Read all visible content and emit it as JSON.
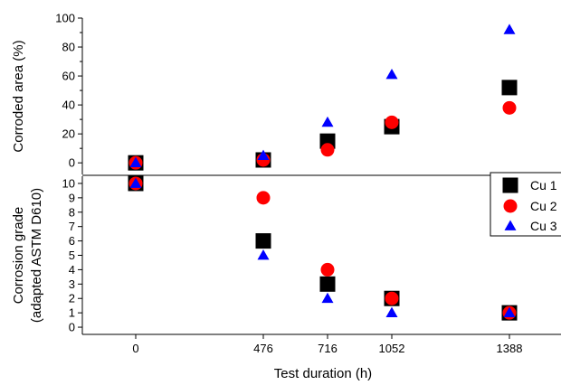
{
  "chart_data": [
    {
      "type": "scatter",
      "panel": "top",
      "ylabel": "Corroded area (%)",
      "ylim": [
        -8,
        100
      ],
      "yticks": [
        0,
        20,
        40,
        60,
        80,
        100
      ],
      "xlabel": "Test duration (h)",
      "x_categories": [
        "0",
        "476",
        "716",
        "1052",
        "1388"
      ],
      "series": [
        {
          "name": "Cu 1",
          "marker": "square",
          "color": "#000000",
          "values": [
            0,
            2,
            15,
            25,
            52
          ]
        },
        {
          "name": "Cu 2",
          "marker": "circle",
          "color": "#ff0000",
          "values": [
            0,
            2,
            9,
            28,
            38
          ]
        },
        {
          "name": "Cu 3",
          "marker": "triangle",
          "color": "#0000ff",
          "values": [
            0,
            5,
            28,
            61,
            92
          ]
        }
      ]
    },
    {
      "type": "scatter",
      "panel": "bottom",
      "ylabel_line1": "Corrosion grade",
      "ylabel_line2": "(adapted ASTM D610)",
      "ylim": [
        -0.5,
        10.5
      ],
      "yticks": [
        0,
        1,
        2,
        3,
        4,
        5,
        6,
        7,
        8,
        9,
        10
      ],
      "xlabel": "Test duration (h)",
      "x_categories": [
        "0",
        "476",
        "716",
        "1052",
        "1388"
      ],
      "series": [
        {
          "name": "Cu 1",
          "marker": "square",
          "color": "#000000",
          "values": [
            10,
            6,
            3,
            2,
            1
          ]
        },
        {
          "name": "Cu 2",
          "marker": "circle",
          "color": "#ff0000",
          "values": [
            10,
            9,
            4,
            2,
            1
          ]
        },
        {
          "name": "Cu 3",
          "marker": "triangle",
          "color": "#0000ff",
          "values": [
            10,
            5,
            2,
            1,
            1
          ]
        }
      ],
      "legend": {
        "placement": "top-right",
        "entries": [
          "Cu 1",
          "Cu 2",
          "Cu 3"
        ]
      }
    }
  ]
}
